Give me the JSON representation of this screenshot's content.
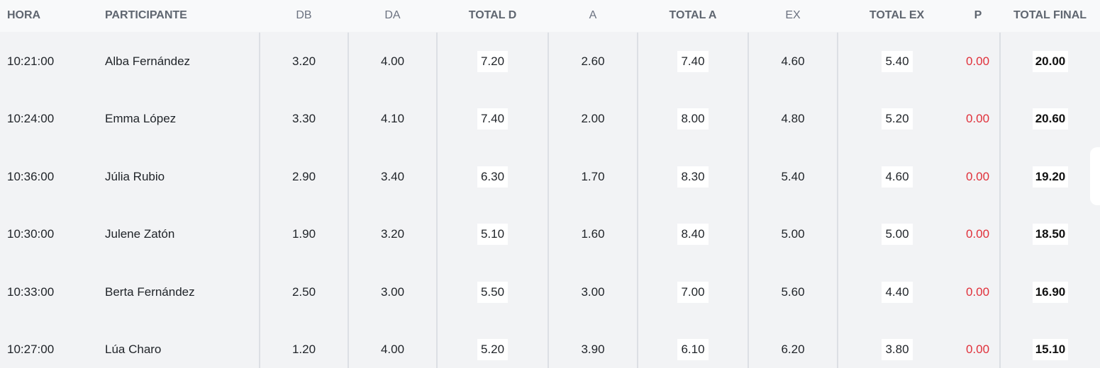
{
  "columns": [
    {
      "key": "hora",
      "label": "HORA"
    },
    {
      "key": "participante",
      "label": "PARTICIPANTE"
    },
    {
      "key": "db",
      "label": "DB"
    },
    {
      "key": "da",
      "label": "DA"
    },
    {
      "key": "total_d",
      "label": "TOTAL D"
    },
    {
      "key": "a",
      "label": "A"
    },
    {
      "key": "total_a",
      "label": "TOTAL A"
    },
    {
      "key": "ex",
      "label": "EX"
    },
    {
      "key": "total_ex",
      "label": "TOTAL EX"
    },
    {
      "key": "p",
      "label": "P"
    },
    {
      "key": "total_final",
      "label": "TOTAL FINAL"
    }
  ],
  "rows": [
    {
      "hora": "10:21:00",
      "participante": "Alba Fernández",
      "db": "3.20",
      "da": "4.00",
      "total_d": "7.20",
      "a": "2.60",
      "total_a": "7.40",
      "ex": "4.60",
      "total_ex": "5.40",
      "p": "0.00",
      "total_final": "20.00"
    },
    {
      "hora": "10:24:00",
      "participante": "Emma López",
      "db": "3.30",
      "da": "4.10",
      "total_d": "7.40",
      "a": "2.00",
      "total_a": "8.00",
      "ex": "4.80",
      "total_ex": "5.20",
      "p": "0.00",
      "total_final": "20.60"
    },
    {
      "hora": "10:36:00",
      "participante": "Júlia Rubio",
      "db": "2.90",
      "da": "3.40",
      "total_d": "6.30",
      "a": "1.70",
      "total_a": "8.30",
      "ex": "5.40",
      "total_ex": "4.60",
      "p": "0.00",
      "total_final": "19.20"
    },
    {
      "hora": "10:30:00",
      "participante": "Julene Zatón",
      "db": "1.90",
      "da": "3.20",
      "total_d": "5.10",
      "a": "1.60",
      "total_a": "8.40",
      "ex": "5.00",
      "total_ex": "5.00",
      "p": "0.00",
      "total_final": "18.50"
    },
    {
      "hora": "10:33:00",
      "participante": "Berta Fernández",
      "db": "2.50",
      "da": "3.00",
      "total_d": "5.50",
      "a": "3.00",
      "total_a": "7.00",
      "ex": "5.60",
      "total_ex": "4.40",
      "p": "0.00",
      "total_final": "16.90"
    },
    {
      "hora": "10:27:00",
      "participante": "Lúa Charo",
      "db": "1.20",
      "da": "4.00",
      "total_d": "5.20",
      "a": "3.90",
      "total_a": "6.10",
      "ex": "6.20",
      "total_ex": "3.80",
      "p": "0.00",
      "total_final": "15.10"
    }
  ],
  "colors": {
    "penalty": "#e0303a",
    "header_text": "#6b7280",
    "background": "#f2f3f5"
  }
}
